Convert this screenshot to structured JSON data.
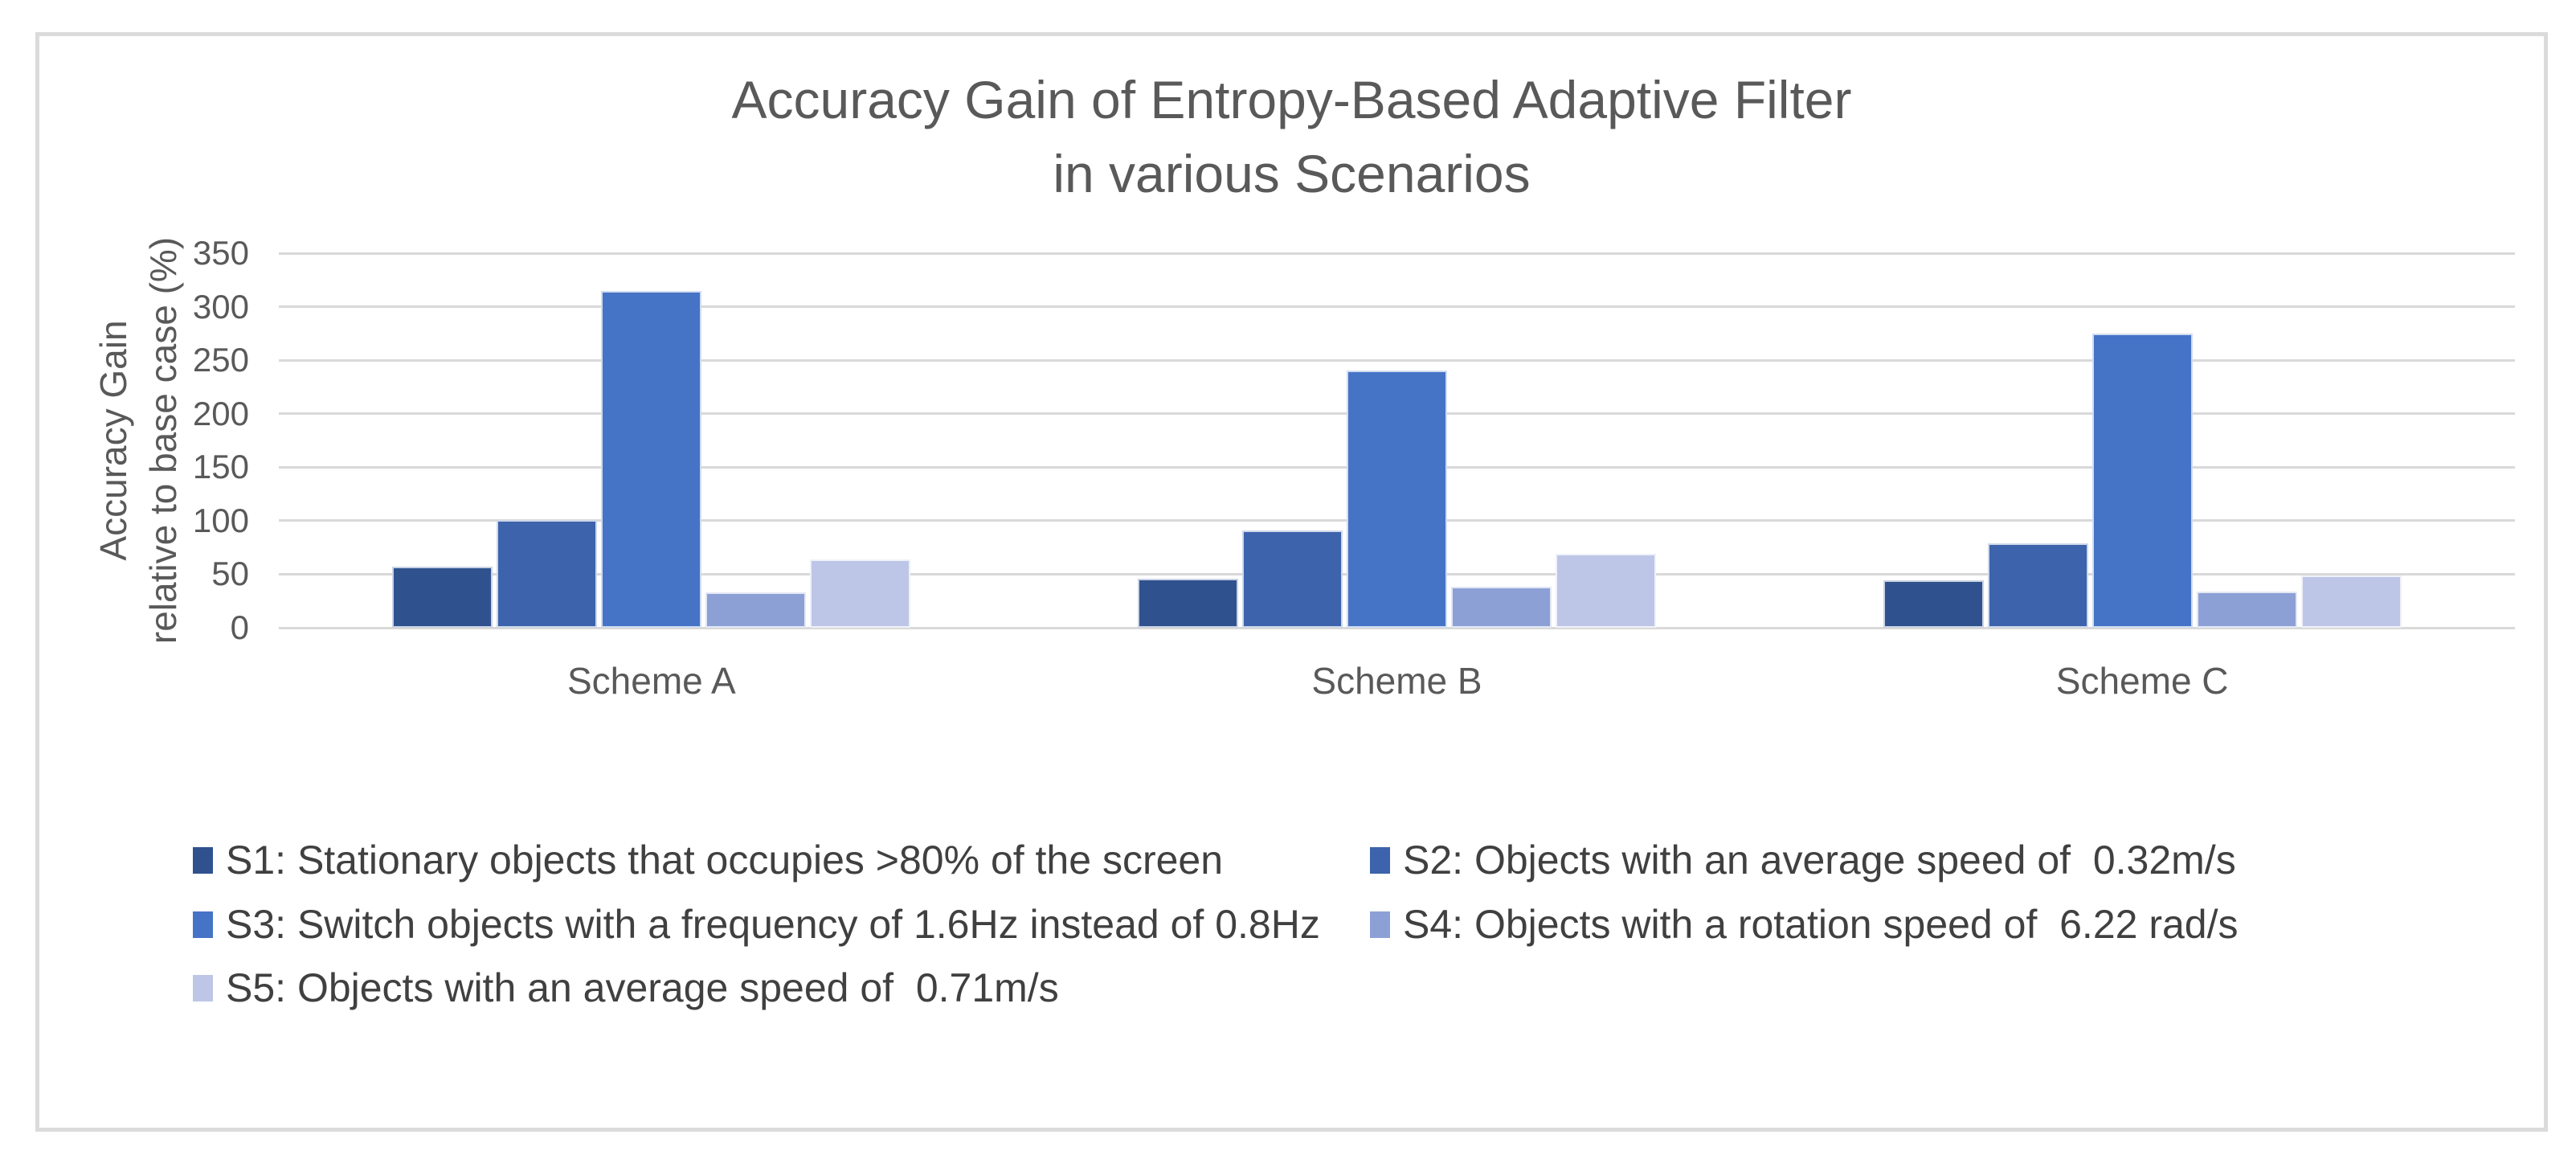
{
  "title": {
    "line1": "Accuracy Gain of Entropy-Based Adaptive Filter",
    "line2": "in various Scenarios"
  },
  "y_axis_title": {
    "line1": "Accuracy Gain",
    "line2": "relative to base case (%)"
  },
  "chart_data": {
    "type": "bar",
    "title": "Accuracy Gain of Entropy-Based Adaptive Filter in various Scenarios",
    "ylabel": "Accuracy Gain relative to base case (%)",
    "xlabel": "",
    "ylim": [
      0,
      350
    ],
    "yticks": [
      0,
      50,
      100,
      150,
      200,
      250,
      300,
      350
    ],
    "grid": true,
    "legend_position": "bottom",
    "categories": [
      "Scheme A",
      "Scheme B",
      "Scheme C"
    ],
    "series": [
      {
        "name": "S1",
        "label": "S1: Stationary objects that occupies >80% of the screen",
        "color": "#2F528F",
        "values": [
          57,
          46,
          44
        ]
      },
      {
        "name": "S2",
        "label": "S2: Objects with an average speed of  0.32m/s",
        "color": "#3C63AB",
        "values": [
          101,
          91,
          79
        ]
      },
      {
        "name": "S3",
        "label": "S3: Switch objects with a frequency of 1.6Hz instead of 0.8Hz",
        "color": "#4573C6",
        "values": [
          315,
          240,
          275
        ]
      },
      {
        "name": "S4",
        "label": "S4: Objects with a rotation speed of  6.22 rad/s",
        "color": "#8CA0D5",
        "values": [
          33,
          38,
          34
        ]
      },
      {
        "name": "S5",
        "label": "S5: Objects with an average speed of  0.71m/s",
        "color": "#BDC6E6",
        "values": [
          64,
          69,
          49
        ]
      }
    ]
  },
  "styles": {
    "text_color": "#595959",
    "legend_text_color": "#404040",
    "gridline_color": "#D9D9D9",
    "frame_border_color": "#DBDBDB",
    "background": "#FFFFFF"
  }
}
